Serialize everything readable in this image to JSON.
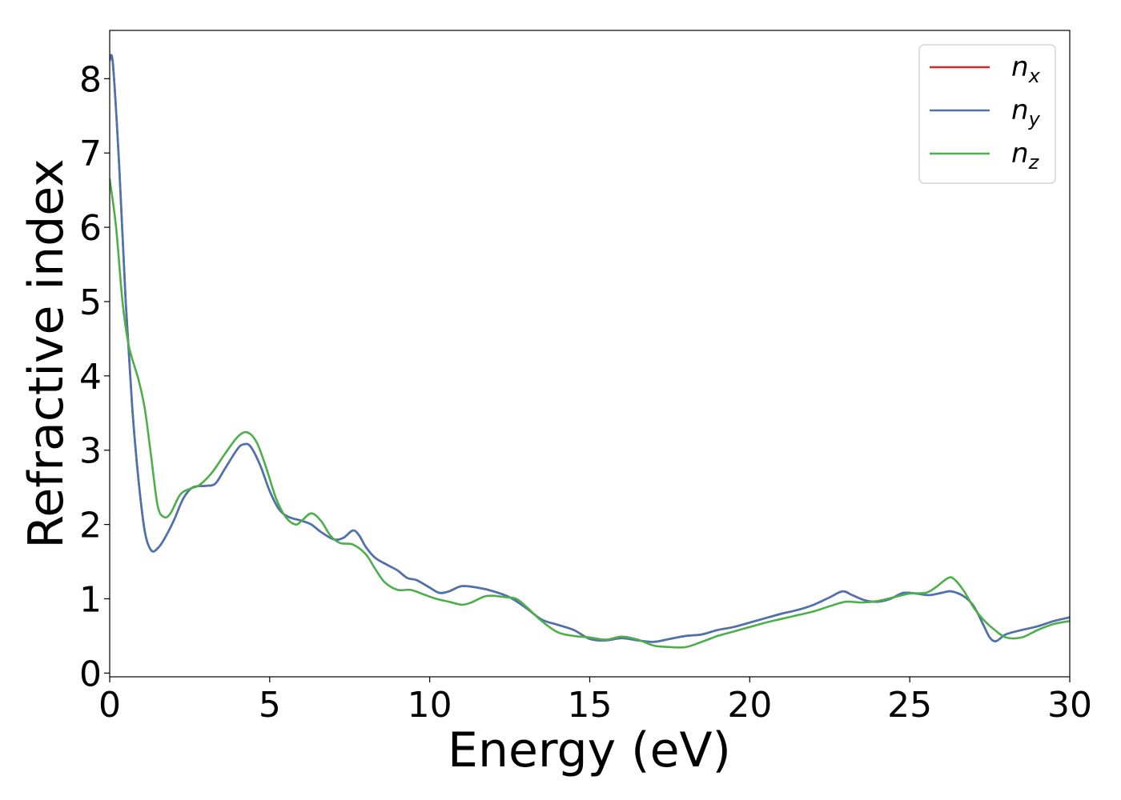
{
  "chart_data": {
    "type": "line",
    "title": "",
    "xlabel": "Energy (eV)",
    "ylabel": "Refractive index",
    "xlim": [
      0,
      30
    ],
    "ylim": [
      -0.05,
      8.65
    ],
    "xticks": [
      0,
      5,
      10,
      15,
      20,
      25,
      30
    ],
    "yticks": [
      0,
      1,
      2,
      3,
      4,
      5,
      6,
      7,
      8
    ],
    "grid": false,
    "legend_position": "top-right",
    "series": [
      {
        "name": "n",
        "subscript": "x",
        "color": "#d62728",
        "points": [
          [
            0,
            8.25
          ],
          [
            0.1,
            8.2
          ],
          [
            0.3,
            6.8
          ],
          [
            0.5,
            5.0
          ],
          [
            0.7,
            3.6
          ],
          [
            0.9,
            2.6
          ],
          [
            1.1,
            1.9
          ],
          [
            1.3,
            1.65
          ],
          [
            1.5,
            1.68
          ],
          [
            1.7,
            1.8
          ],
          [
            2.0,
            2.05
          ],
          [
            2.3,
            2.35
          ],
          [
            2.6,
            2.5
          ],
          [
            3.0,
            2.52
          ],
          [
            3.3,
            2.55
          ],
          [
            3.6,
            2.75
          ],
          [
            4.0,
            3.02
          ],
          [
            4.2,
            3.08
          ],
          [
            4.4,
            3.05
          ],
          [
            4.7,
            2.8
          ],
          [
            5.0,
            2.45
          ],
          [
            5.3,
            2.2
          ],
          [
            5.6,
            2.1
          ],
          [
            6.0,
            2.05
          ],
          [
            6.3,
            2.0
          ],
          [
            6.6,
            1.9
          ],
          [
            7.0,
            1.8
          ],
          [
            7.3,
            1.82
          ],
          [
            7.6,
            1.92
          ],
          [
            7.8,
            1.85
          ],
          [
            8.0,
            1.7
          ],
          [
            8.3,
            1.55
          ],
          [
            8.7,
            1.45
          ],
          [
            9.0,
            1.38
          ],
          [
            9.3,
            1.28
          ],
          [
            9.6,
            1.25
          ],
          [
            10.0,
            1.15
          ],
          [
            10.3,
            1.08
          ],
          [
            10.6,
            1.1
          ],
          [
            11.0,
            1.17
          ],
          [
            11.5,
            1.15
          ],
          [
            12.0,
            1.1
          ],
          [
            12.5,
            1.02
          ],
          [
            13.0,
            0.88
          ],
          [
            13.5,
            0.72
          ],
          [
            14.0,
            0.65
          ],
          [
            14.5,
            0.58
          ],
          [
            15.0,
            0.46
          ],
          [
            15.5,
            0.44
          ],
          [
            16.0,
            0.47
          ],
          [
            16.5,
            0.44
          ],
          [
            17.0,
            0.42
          ],
          [
            17.5,
            0.46
          ],
          [
            18.0,
            0.5
          ],
          [
            18.5,
            0.52
          ],
          [
            19.0,
            0.58
          ],
          [
            19.5,
            0.62
          ],
          [
            20.0,
            0.68
          ],
          [
            20.5,
            0.74
          ],
          [
            21.0,
            0.8
          ],
          [
            21.5,
            0.85
          ],
          [
            22.0,
            0.92
          ],
          [
            22.5,
            1.02
          ],
          [
            22.9,
            1.1
          ],
          [
            23.2,
            1.05
          ],
          [
            23.6,
            0.98
          ],
          [
            24.0,
            0.96
          ],
          [
            24.4,
            1.0
          ],
          [
            24.8,
            1.08
          ],
          [
            25.2,
            1.07
          ],
          [
            25.6,
            1.05
          ],
          [
            26.0,
            1.08
          ],
          [
            26.3,
            1.1
          ],
          [
            26.7,
            1.03
          ],
          [
            27.0,
            0.9
          ],
          [
            27.3,
            0.65
          ],
          [
            27.5,
            0.48
          ],
          [
            27.7,
            0.43
          ],
          [
            28.0,
            0.52
          ],
          [
            28.5,
            0.58
          ],
          [
            29.0,
            0.63
          ],
          [
            29.5,
            0.7
          ],
          [
            30.0,
            0.75
          ]
        ]
      },
      {
        "name": "n",
        "subscript": "y",
        "color": "#4a74b0",
        "points": [
          [
            0,
            8.25
          ],
          [
            0.1,
            8.2
          ],
          [
            0.3,
            6.8
          ],
          [
            0.5,
            5.0
          ],
          [
            0.7,
            3.6
          ],
          [
            0.9,
            2.6
          ],
          [
            1.1,
            1.9
          ],
          [
            1.3,
            1.65
          ],
          [
            1.5,
            1.68
          ],
          [
            1.7,
            1.8
          ],
          [
            2.0,
            2.05
          ],
          [
            2.3,
            2.35
          ],
          [
            2.6,
            2.5
          ],
          [
            3.0,
            2.52
          ],
          [
            3.3,
            2.55
          ],
          [
            3.6,
            2.75
          ],
          [
            4.0,
            3.02
          ],
          [
            4.2,
            3.08
          ],
          [
            4.4,
            3.05
          ],
          [
            4.7,
            2.8
          ],
          [
            5.0,
            2.45
          ],
          [
            5.3,
            2.2
          ],
          [
            5.6,
            2.1
          ],
          [
            6.0,
            2.05
          ],
          [
            6.3,
            2.0
          ],
          [
            6.6,
            1.9
          ],
          [
            7.0,
            1.8
          ],
          [
            7.3,
            1.82
          ],
          [
            7.6,
            1.92
          ],
          [
            7.8,
            1.85
          ],
          [
            8.0,
            1.7
          ],
          [
            8.3,
            1.55
          ],
          [
            8.7,
            1.45
          ],
          [
            9.0,
            1.38
          ],
          [
            9.3,
            1.28
          ],
          [
            9.6,
            1.25
          ],
          [
            10.0,
            1.15
          ],
          [
            10.3,
            1.08
          ],
          [
            10.6,
            1.1
          ],
          [
            11.0,
            1.17
          ],
          [
            11.5,
            1.15
          ],
          [
            12.0,
            1.1
          ],
          [
            12.5,
            1.02
          ],
          [
            13.0,
            0.88
          ],
          [
            13.5,
            0.72
          ],
          [
            14.0,
            0.65
          ],
          [
            14.5,
            0.58
          ],
          [
            15.0,
            0.46
          ],
          [
            15.5,
            0.44
          ],
          [
            16.0,
            0.47
          ],
          [
            16.5,
            0.44
          ],
          [
            17.0,
            0.42
          ],
          [
            17.5,
            0.46
          ],
          [
            18.0,
            0.5
          ],
          [
            18.5,
            0.52
          ],
          [
            19.0,
            0.58
          ],
          [
            19.5,
            0.62
          ],
          [
            20.0,
            0.68
          ],
          [
            20.5,
            0.74
          ],
          [
            21.0,
            0.8
          ],
          [
            21.5,
            0.85
          ],
          [
            22.0,
            0.92
          ],
          [
            22.5,
            1.02
          ],
          [
            22.9,
            1.1
          ],
          [
            23.2,
            1.05
          ],
          [
            23.6,
            0.98
          ],
          [
            24.0,
            0.96
          ],
          [
            24.4,
            1.0
          ],
          [
            24.8,
            1.08
          ],
          [
            25.2,
            1.07
          ],
          [
            25.6,
            1.05
          ],
          [
            26.0,
            1.08
          ],
          [
            26.3,
            1.1
          ],
          [
            26.7,
            1.03
          ],
          [
            27.0,
            0.9
          ],
          [
            27.3,
            0.65
          ],
          [
            27.5,
            0.48
          ],
          [
            27.7,
            0.43
          ],
          [
            28.0,
            0.52
          ],
          [
            28.5,
            0.58
          ],
          [
            29.0,
            0.63
          ],
          [
            29.5,
            0.7
          ],
          [
            30.0,
            0.75
          ]
        ]
      },
      {
        "name": "n",
        "subscript": "z",
        "color": "#4daf4a",
        "points": [
          [
            0,
            6.65
          ],
          [
            0.2,
            6.0
          ],
          [
            0.4,
            5.0
          ],
          [
            0.6,
            4.4
          ],
          [
            0.9,
            3.95
          ],
          [
            1.1,
            3.55
          ],
          [
            1.3,
            2.9
          ],
          [
            1.5,
            2.25
          ],
          [
            1.7,
            2.1
          ],
          [
            1.9,
            2.15
          ],
          [
            2.2,
            2.4
          ],
          [
            2.5,
            2.48
          ],
          [
            2.8,
            2.53
          ],
          [
            3.2,
            2.7
          ],
          [
            3.6,
            2.95
          ],
          [
            4.0,
            3.18
          ],
          [
            4.3,
            3.24
          ],
          [
            4.6,
            3.1
          ],
          [
            4.9,
            2.75
          ],
          [
            5.2,
            2.35
          ],
          [
            5.5,
            2.1
          ],
          [
            5.8,
            2.0
          ],
          [
            6.0,
            2.05
          ],
          [
            6.3,
            2.15
          ],
          [
            6.6,
            2.05
          ],
          [
            6.9,
            1.85
          ],
          [
            7.2,
            1.75
          ],
          [
            7.6,
            1.73
          ],
          [
            8.0,
            1.6
          ],
          [
            8.3,
            1.4
          ],
          [
            8.6,
            1.22
          ],
          [
            9.0,
            1.12
          ],
          [
            9.4,
            1.12
          ],
          [
            9.8,
            1.06
          ],
          [
            10.2,
            1.0
          ],
          [
            10.6,
            0.96
          ],
          [
            11.0,
            0.92
          ],
          [
            11.3,
            0.95
          ],
          [
            11.7,
            1.03
          ],
          [
            12.0,
            1.04
          ],
          [
            12.4,
            1.02
          ],
          [
            12.7,
            1.0
          ],
          [
            13.0,
            0.9
          ],
          [
            13.5,
            0.7
          ],
          [
            14.0,
            0.55
          ],
          [
            14.5,
            0.5
          ],
          [
            15.0,
            0.48
          ],
          [
            15.5,
            0.45
          ],
          [
            16.0,
            0.49
          ],
          [
            16.5,
            0.45
          ],
          [
            17.0,
            0.37
          ],
          [
            17.5,
            0.35
          ],
          [
            18.0,
            0.35
          ],
          [
            18.5,
            0.42
          ],
          [
            19.0,
            0.5
          ],
          [
            19.5,
            0.56
          ],
          [
            20.0,
            0.62
          ],
          [
            20.5,
            0.68
          ],
          [
            21.0,
            0.73
          ],
          [
            21.5,
            0.78
          ],
          [
            22.0,
            0.83
          ],
          [
            22.5,
            0.9
          ],
          [
            23.0,
            0.96
          ],
          [
            23.5,
            0.95
          ],
          [
            24.0,
            0.97
          ],
          [
            24.5,
            1.02
          ],
          [
            25.0,
            1.07
          ],
          [
            25.5,
            1.08
          ],
          [
            25.8,
            1.15
          ],
          [
            26.2,
            1.28
          ],
          [
            26.4,
            1.26
          ],
          [
            26.7,
            1.1
          ],
          [
            27.0,
            0.88
          ],
          [
            27.3,
            0.72
          ],
          [
            27.6,
            0.6
          ],
          [
            28.0,
            0.48
          ],
          [
            28.5,
            0.48
          ],
          [
            29.0,
            0.58
          ],
          [
            29.5,
            0.66
          ],
          [
            30.0,
            0.7
          ]
        ]
      }
    ]
  }
}
